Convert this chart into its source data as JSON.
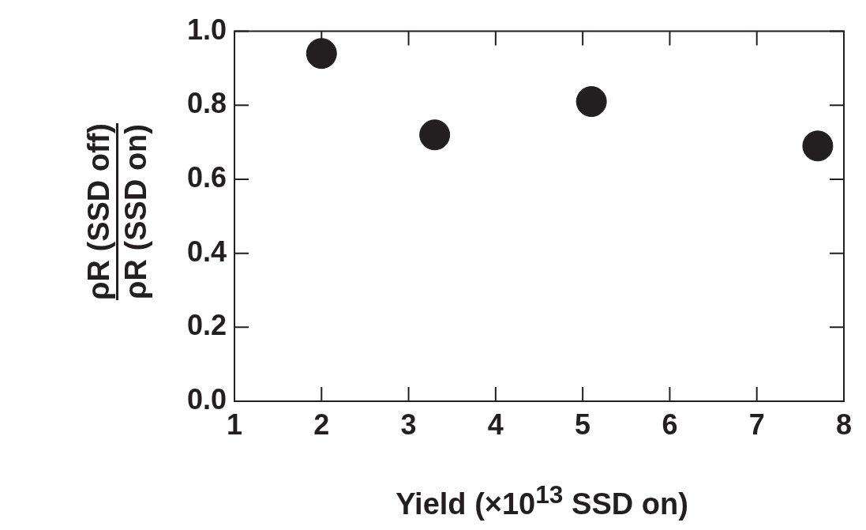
{
  "chart_data": {
    "type": "scatter",
    "xlabel": "Yield (×10$^{13}$ SSD on)",
    "ylabel": "ρR (SSD off)\nρR (SSD on)",
    "x": [
      2.0,
      3.3,
      5.1,
      7.7
    ],
    "series": [
      {
        "color": "#231f20",
        "values": [
          0.94,
          0.72,
          0.81,
          0.69
        ]
      }
    ],
    "xlim": [
      1,
      8
    ],
    "xticks": [
      1,
      2,
      3,
      4,
      5,
      6,
      7,
      8
    ],
    "ylim": [
      0,
      1
    ],
    "yticks": [
      {
        "value": 0,
        "label": "0.0"
      },
      0.2,
      0.4,
      0.6,
      0.8,
      {
        "value": 1,
        "label": "1.0"
      }
    ],
    "grid": false,
    "legend": false,
    "marker": "circle"
  }
}
